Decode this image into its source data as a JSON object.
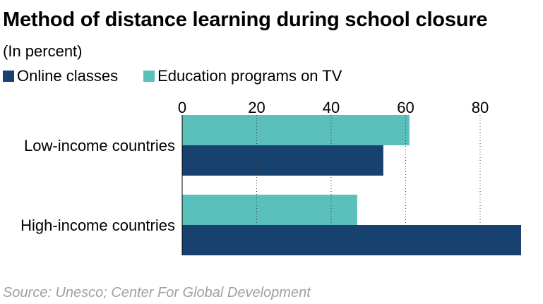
{
  "chart_data": {
    "type": "bar",
    "orientation": "horizontal",
    "title": "Method of distance learning during school closure",
    "subtitle": "(In percent)",
    "categories": [
      "Low-income countries",
      "High-income countries"
    ],
    "series": [
      {
        "name": "Online classes",
        "color": "#17416f",
        "values": [
          54,
          91
        ]
      },
      {
        "name": "Education programs on TV",
        "color": "#5bbfbc",
        "values": [
          61,
          47
        ]
      }
    ],
    "xlim": [
      0,
      91
    ],
    "xticks": [
      0,
      20,
      40,
      60,
      80
    ],
    "xlabel": "",
    "ylabel": "",
    "grid": "vertical-dotted",
    "legend_position": "top-left",
    "source": "Source: Unesco; Center For Global Development"
  }
}
